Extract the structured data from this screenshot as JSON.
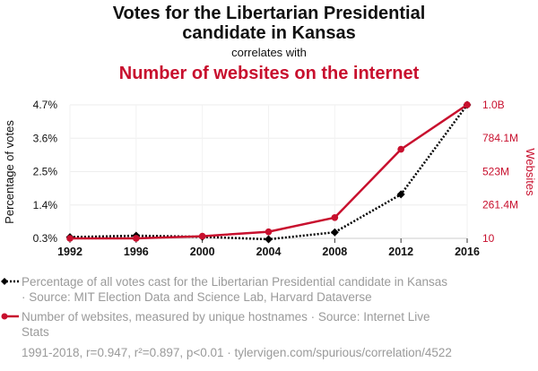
{
  "chart_data": {
    "type": "line",
    "title_line1": "Votes for the Libertarian Presidential",
    "title_line2": "candidate in Kansas",
    "subtitle": "correlates with",
    "title2": "Number of websites on the internet",
    "x": [
      1992,
      1996,
      2000,
      2004,
      2008,
      2012,
      2016
    ],
    "x_tick_labels": [
      "1992",
      "1996",
      "2000",
      "2004",
      "2008",
      "2012",
      "2016"
    ],
    "xlim": [
      1992,
      2016
    ],
    "left_axis": {
      "label": "Percentage of votes",
      "ylim": [
        0.3,
        4.7
      ],
      "ticks": [
        0.3,
        1.4,
        2.5,
        3.6,
        4.7
      ],
      "tick_labels": [
        "0.3%",
        "1.4%",
        "2.5%",
        "3.6%",
        "4.7%"
      ]
    },
    "right_axis": {
      "label": "Websites",
      "ylim": [
        10,
        1045000000
      ],
      "ticks": [
        10,
        261400000,
        523000000,
        784100000,
        1045000000
      ],
      "tick_labels": [
        "10",
        "261.4M",
        "523M",
        "784.1M",
        "1.0B"
      ]
    },
    "grid": true,
    "series": [
      {
        "axis": "left",
        "color": "#000000",
        "style": "dotted",
        "marker": "diamond",
        "values": [
          0.34,
          0.39,
          0.35,
          0.27,
          0.5,
          1.75,
          4.7
        ]
      },
      {
        "axis": "right",
        "color": "#c8102e",
        "style": "solid",
        "marker": "circle",
        "values": [
          10,
          257601,
          17087182,
          51611646,
          162662052,
          697089489,
          1045534808
        ]
      }
    ],
    "legend": [
      {
        "line1": "Percentage of all votes cast for the Libertarian Presidential candidate in Kansas",
        "line2": "· Source: MIT Election Data and Science Lab, Harvard Dataverse"
      },
      {
        "line1": "Number of websites, measured by unique hostnames · Source: Internet Live",
        "line2": "Stats"
      }
    ],
    "footer": "1991-2018, r=0.947, r²=0.897, p<0.01 · tylervigen.com/spurious/correlation/4522"
  }
}
